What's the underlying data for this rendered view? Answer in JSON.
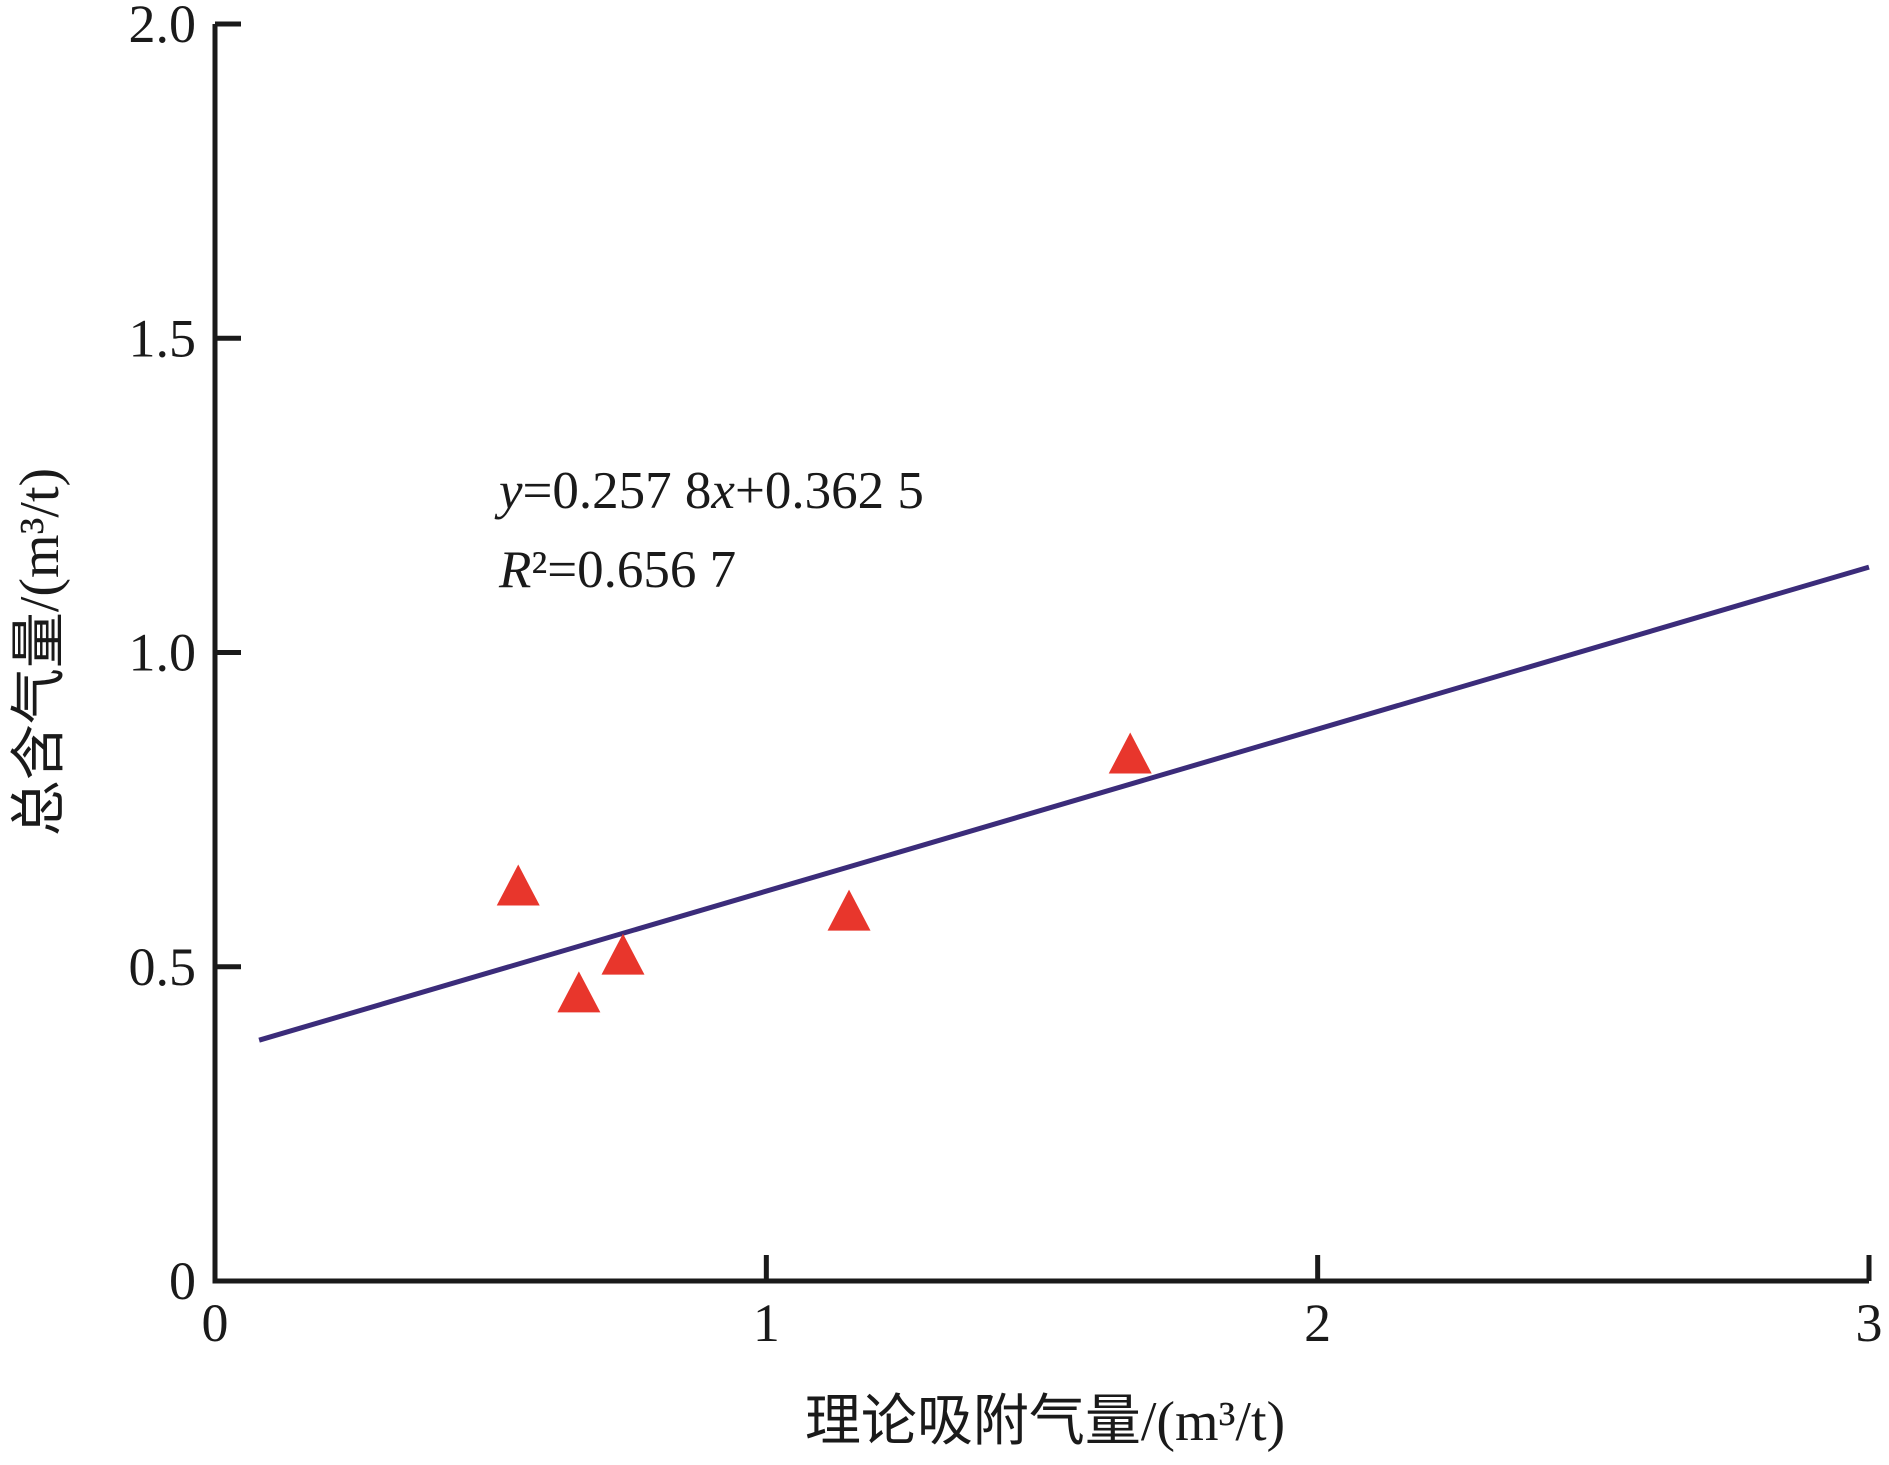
{
  "chart_data": {
    "type": "scatter",
    "title": "",
    "xlabel": "理论吸附气量/(m³/t)",
    "ylabel": "总含气量/(m³/t)",
    "xlim": [
      0,
      3
    ],
    "ylim": [
      0,
      2
    ],
    "grid": false,
    "x_ticks": [
      {
        "value": 0,
        "label": "0"
      },
      {
        "value": 1,
        "label": "1"
      },
      {
        "value": 2,
        "label": "2"
      },
      {
        "value": 3,
        "label": "3"
      }
    ],
    "y_ticks": [
      {
        "value": 0,
        "label": "0"
      },
      {
        "value": 0.5,
        "label": "0.5"
      },
      {
        "value": 1.0,
        "label": "1.0"
      },
      {
        "value": 1.5,
        "label": "1.5"
      },
      {
        "value": 2.0,
        "label": "2.0"
      }
    ],
    "series": [
      {
        "marker": "triangle",
        "color": "#e8362c",
        "points": [
          {
            "x": 0.55,
            "y": 0.63
          },
          {
            "x": 0.66,
            "y": 0.46
          },
          {
            "x": 0.74,
            "y": 0.52
          },
          {
            "x": 1.15,
            "y": 0.59
          },
          {
            "x": 1.66,
            "y": 0.84
          }
        ]
      }
    ],
    "fit_line": {
      "slope": 0.2578,
      "intercept": 0.3625,
      "x_range": [
        0.08,
        3
      ],
      "color": "#3b2c7a"
    },
    "annotations": [
      {
        "parts": [
          "y",
          "=0.257 8",
          "x",
          "+0.362 5"
        ]
      },
      {
        "parts": [
          "R",
          "²=0.656 7"
        ]
      }
    ],
    "axis_color": "#1a1a1a"
  }
}
